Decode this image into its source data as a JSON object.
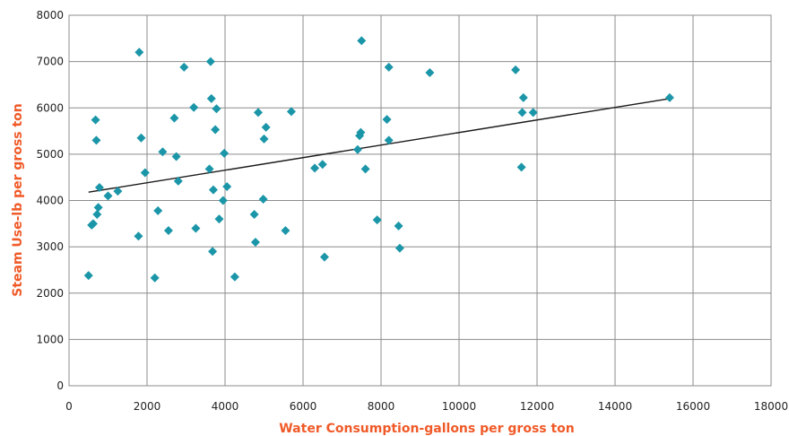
{
  "chart_data": {
    "type": "scatter",
    "xlabel": "Water Consumption-gallons per gross ton",
    "ylabel": "Steam Use-lb per gross ton",
    "xlim": [
      0,
      18000
    ],
    "ylim": [
      0,
      8000
    ],
    "x_ticks": [
      0,
      2000,
      4000,
      6000,
      8000,
      10000,
      12000,
      14000,
      16000,
      18000
    ],
    "y_ticks": [
      0,
      1000,
      2000,
      3000,
      4000,
      5000,
      6000,
      7000,
      8000
    ],
    "grid": true,
    "legend": "none",
    "marker_color": "#1b96a8",
    "axis_title_color": "#f05a28",
    "points": [
      [
        500,
        2380
      ],
      [
        580,
        3470
      ],
      [
        620,
        3500
      ],
      [
        680,
        5740
      ],
      [
        700,
        5300
      ],
      [
        720,
        3700
      ],
      [
        750,
        3850
      ],
      [
        780,
        4280
      ],
      [
        1000,
        4100
      ],
      [
        1250,
        4200
      ],
      [
        1780,
        3230
      ],
      [
        1800,
        7200
      ],
      [
        1850,
        5350
      ],
      [
        1950,
        4600
      ],
      [
        2200,
        2330
      ],
      [
        2280,
        3780
      ],
      [
        2400,
        5050
      ],
      [
        2550,
        3350
      ],
      [
        2700,
        5780
      ],
      [
        2750,
        4950
      ],
      [
        2800,
        4420
      ],
      [
        2950,
        6880
      ],
      [
        3200,
        6010
      ],
      [
        3250,
        3400
      ],
      [
        3600,
        4680
      ],
      [
        3630,
        7000
      ],
      [
        3650,
        6200
      ],
      [
        3680,
        2900
      ],
      [
        3700,
        4230
      ],
      [
        3750,
        5530
      ],
      [
        3780,
        5980
      ],
      [
        3850,
        3600
      ],
      [
        3950,
        4000
      ],
      [
        3980,
        5020
      ],
      [
        4050,
        4300
      ],
      [
        4250,
        2350
      ],
      [
        4750,
        3700
      ],
      [
        4780,
        3100
      ],
      [
        4850,
        5900
      ],
      [
        4980,
        4030
      ],
      [
        5000,
        5330
      ],
      [
        5050,
        5580
      ],
      [
        5550,
        3350
      ],
      [
        5700,
        5920
      ],
      [
        6300,
        4700
      ],
      [
        6500,
        4780
      ],
      [
        6550,
        2780
      ],
      [
        7400,
        5100
      ],
      [
        7450,
        5400
      ],
      [
        7480,
        5470
      ],
      [
        7500,
        7450
      ],
      [
        7600,
        4680
      ],
      [
        7900,
        3580
      ],
      [
        8150,
        5750
      ],
      [
        8200,
        6880
      ],
      [
        8200,
        5300
      ],
      [
        8450,
        3450
      ],
      [
        8480,
        2970
      ],
      [
        9250,
        6760
      ],
      [
        11450,
        6820
      ],
      [
        11600,
        4720
      ],
      [
        11650,
        6220
      ],
      [
        11620,
        5900
      ],
      [
        11900,
        5900
      ],
      [
        15400,
        6220
      ]
    ],
    "trendline": {
      "x": [
        500,
        15400
      ],
      "y": [
        4180,
        6200
      ]
    }
  }
}
